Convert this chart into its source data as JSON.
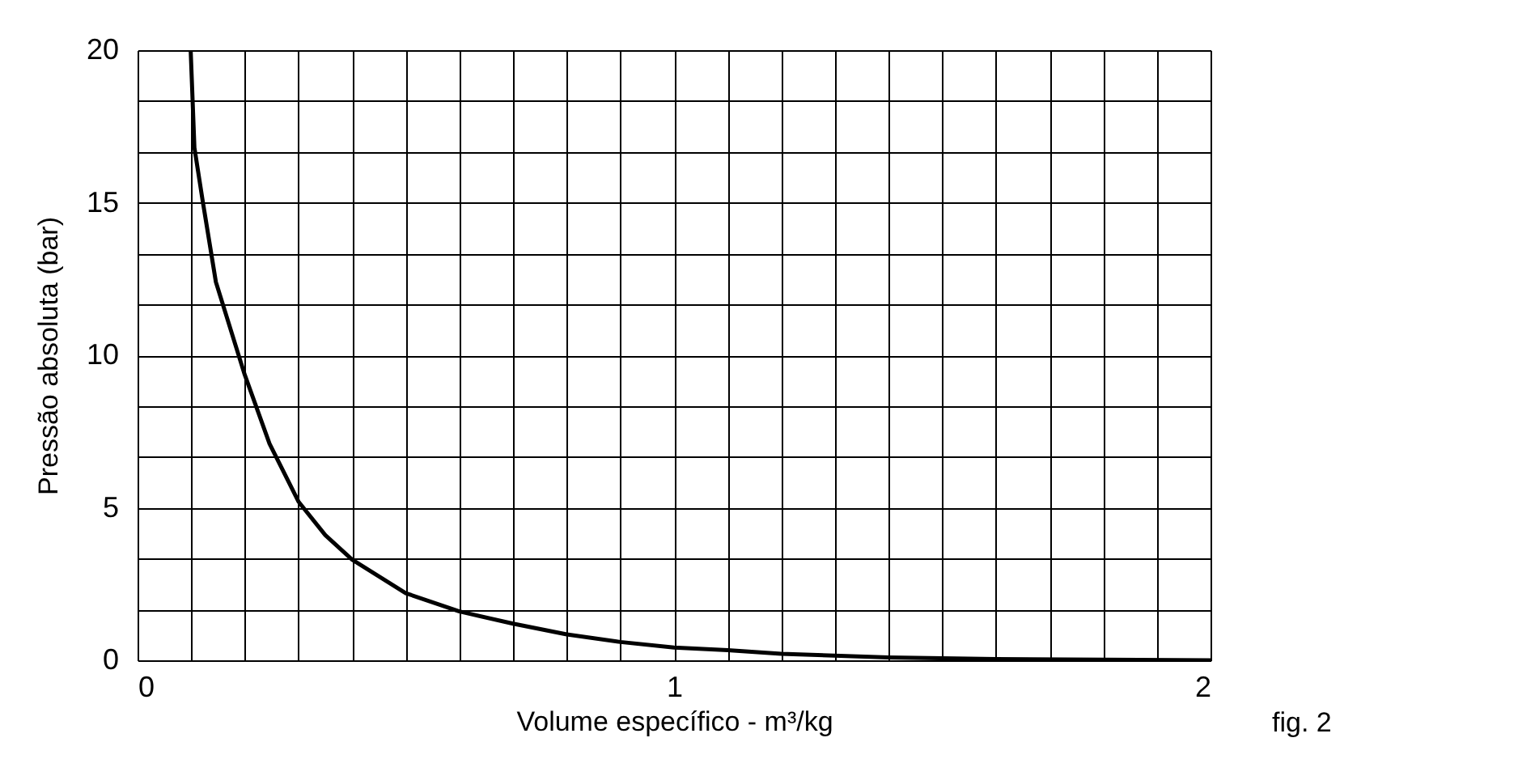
{
  "chart_data": {
    "type": "line",
    "xlabel": "Volume específico - m³/kg",
    "ylabel": "Pressão absoluta (bar)",
    "x": [
      0.099,
      0.106,
      0.121,
      0.146,
      0.199,
      0.246,
      0.3,
      0.35,
      0.4,
      0.5,
      0.6,
      0.7,
      0.8,
      0.9,
      1.0,
      1.1,
      1.2,
      1.4,
      1.6,
      1.8,
      2.0
    ],
    "series": [
      {
        "color": "#000000",
        "values": [
          20,
          16.8,
          15.1,
          12.4,
          9.4,
          7.1,
          5.2,
          4.1,
          3.3,
          2.2,
          1.6,
          1.2,
          0.85,
          0.6,
          0.42,
          0.33,
          0.21,
          0.09,
          0.04,
          0.02,
          0.0
        ]
      }
    ],
    "xlim": [
      0,
      2
    ],
    "ylim": [
      0,
      20
    ],
    "xticks": [
      0,
      {
        "value": 0.1,
        "label": null
      },
      {
        "value": 0.2,
        "label": null
      },
      {
        "value": 0.3,
        "label": null
      },
      {
        "value": 0.4,
        "label": null
      },
      {
        "value": 0.5,
        "label": null
      },
      {
        "value": 0.6,
        "label": null
      },
      {
        "value": 0.7,
        "label": null
      },
      {
        "value": 0.8,
        "label": null
      },
      {
        "value": 0.9,
        "label": null
      },
      1,
      {
        "value": 1.1,
        "label": null
      },
      {
        "value": 1.2,
        "label": null
      },
      {
        "value": 1.3,
        "label": null
      },
      {
        "value": 1.4,
        "label": null
      },
      {
        "value": 1.5,
        "label": null
      },
      {
        "value": 1.6,
        "label": null
      },
      {
        "value": 1.7,
        "label": null
      },
      {
        "value": 1.8,
        "label": null
      },
      {
        "value": 1.9,
        "label": null
      },
      2
    ],
    "yticks": [
      0,
      {
        "value": 1.667,
        "label": null
      },
      {
        "value": 3.333,
        "label": null
      },
      5,
      {
        "value": 6.667,
        "label": null
      },
      {
        "value": 8.333,
        "label": null
      },
      10,
      {
        "value": 11.667,
        "label": null
      },
      {
        "value": 13.333,
        "label": null
      },
      15,
      {
        "value": 16.667,
        "label": null
      },
      {
        "value": 18.333,
        "label": null
      },
      20
    ],
    "grid": true,
    "marker": "none",
    "line_style": "solid",
    "annotations": [
      "fig. 2"
    ]
  }
}
